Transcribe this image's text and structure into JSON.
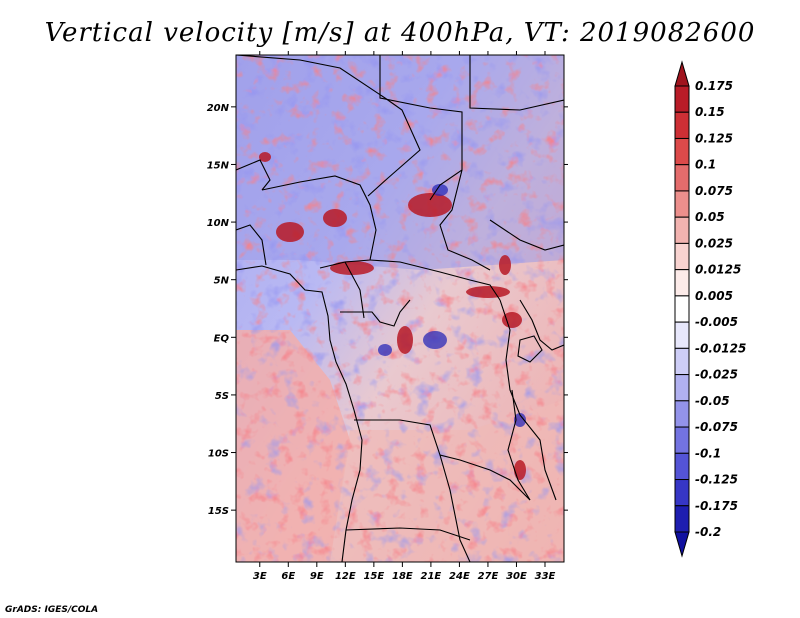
{
  "chart_data": {
    "type": "heatmap",
    "title": "Vertical velocity [m/s] at 400hPa, VT: 2019082600",
    "x_ticks": [
      "3E",
      "6E",
      "9E",
      "12E",
      "15E",
      "18E",
      "21E",
      "24E",
      "27E",
      "30E",
      "33E"
    ],
    "x_tick_values": [
      3,
      6,
      9,
      12,
      15,
      18,
      21,
      24,
      27,
      30,
      33
    ],
    "y_ticks": [
      "20N",
      "15N",
      "10N",
      "5N",
      "EQ",
      "5S",
      "10S",
      "15S"
    ],
    "y_tick_values": [
      20,
      15,
      10,
      5,
      0,
      -5,
      -10,
      -15
    ],
    "lon_range": [
      0.5,
      35
    ],
    "lat_range": [
      -19.5,
      24.5
    ],
    "units": "m/s",
    "colorbar": {
      "levels": [
        "0.175",
        "0.15",
        "0.125",
        "0.1",
        "0.075",
        "0.05",
        "0.025",
        "0.0125",
        "0.005",
        "-0.005",
        "-0.0125",
        "-0.025",
        "-0.05",
        "-0.075",
        "-0.1",
        "-0.125",
        "-0.175",
        "-0.2"
      ],
      "colors": [
        "#a0141e",
        "#b91c28",
        "#cd2f35",
        "#dc4a4a",
        "#e46c6c",
        "#ec8f8c",
        "#f2b3b0",
        "#f8d3d0",
        "#fcebe9",
        "#ffffff",
        "#e7e7fb",
        "#cdcdf6",
        "#b1b1f0",
        "#9393ea",
        "#7373e1",
        "#5454d6",
        "#3636c6",
        "#1e1eb0",
        "#1010a0"
      ],
      "orientation": "vertical",
      "placement": "right"
    },
    "credit": "GrADS: IGES/COLA"
  }
}
